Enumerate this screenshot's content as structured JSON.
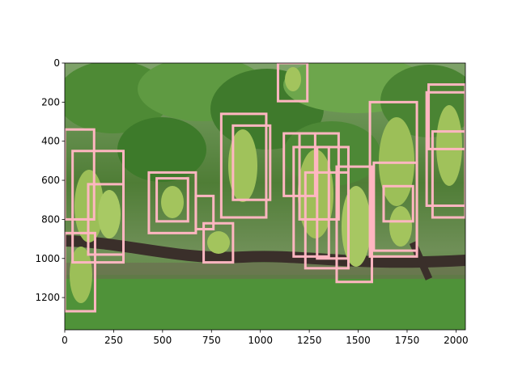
{
  "chart_data": {
    "type": "image",
    "title": "",
    "xlabel": "",
    "ylabel": "",
    "image_width": 2048,
    "image_height": 1365,
    "xlim": [
      0,
      2048
    ],
    "ylim": [
      1365,
      0
    ],
    "xticks": [
      0,
      250,
      500,
      750,
      1000,
      1250,
      1500,
      1750,
      2000
    ],
    "yticks": [
      0,
      200,
      400,
      600,
      800,
      1000,
      1200
    ],
    "box_color": "#ffb6c1",
    "boxes": [
      {
        "x0": 1090,
        "y0": 0,
        "x1": 1240,
        "y1": 195
      },
      {
        "x0": 0,
        "y0": 340,
        "x1": 150,
        "y1": 800
      },
      {
        "x0": 40,
        "y0": 450,
        "x1": 300,
        "y1": 1020
      },
      {
        "x0": 120,
        "y0": 620,
        "x1": 300,
        "y1": 980
      },
      {
        "x0": 0,
        "y0": 870,
        "x1": 155,
        "y1": 1270
      },
      {
        "x0": 430,
        "y0": 560,
        "x1": 670,
        "y1": 870
      },
      {
        "x0": 470,
        "y0": 590,
        "x1": 630,
        "y1": 810
      },
      {
        "x0": 670,
        "y0": 680,
        "x1": 760,
        "y1": 850
      },
      {
        "x0": 710,
        "y0": 820,
        "x1": 860,
        "y1": 1020
      },
      {
        "x0": 800,
        "y0": 260,
        "x1": 1030,
        "y1": 790
      },
      {
        "x0": 860,
        "y0": 320,
        "x1": 1050,
        "y1": 700
      },
      {
        "x0": 1120,
        "y0": 360,
        "x1": 1280,
        "y1": 680
      },
      {
        "x0": 1170,
        "y0": 430,
        "x1": 1350,
        "y1": 990
      },
      {
        "x0": 1200,
        "y0": 360,
        "x1": 1400,
        "y1": 800
      },
      {
        "x0": 1230,
        "y0": 560,
        "x1": 1450,
        "y1": 1050
      },
      {
        "x0": 1290,
        "y0": 430,
        "x1": 1450,
        "y1": 1000
      },
      {
        "x0": 1390,
        "y0": 530,
        "x1": 1570,
        "y1": 1120
      },
      {
        "x0": 1560,
        "y0": 200,
        "x1": 1800,
        "y1": 990
      },
      {
        "x0": 1580,
        "y0": 510,
        "x1": 1800,
        "y1": 960
      },
      {
        "x0": 1630,
        "y0": 630,
        "x1": 1780,
        "y1": 810
      },
      {
        "x0": 1850,
        "y0": 150,
        "x1": 2048,
        "y1": 730
      },
      {
        "x0": 1860,
        "y0": 110,
        "x1": 2048,
        "y1": 440
      },
      {
        "x0": 1880,
        "y0": 350,
        "x1": 2048,
        "y1": 790
      }
    ]
  }
}
